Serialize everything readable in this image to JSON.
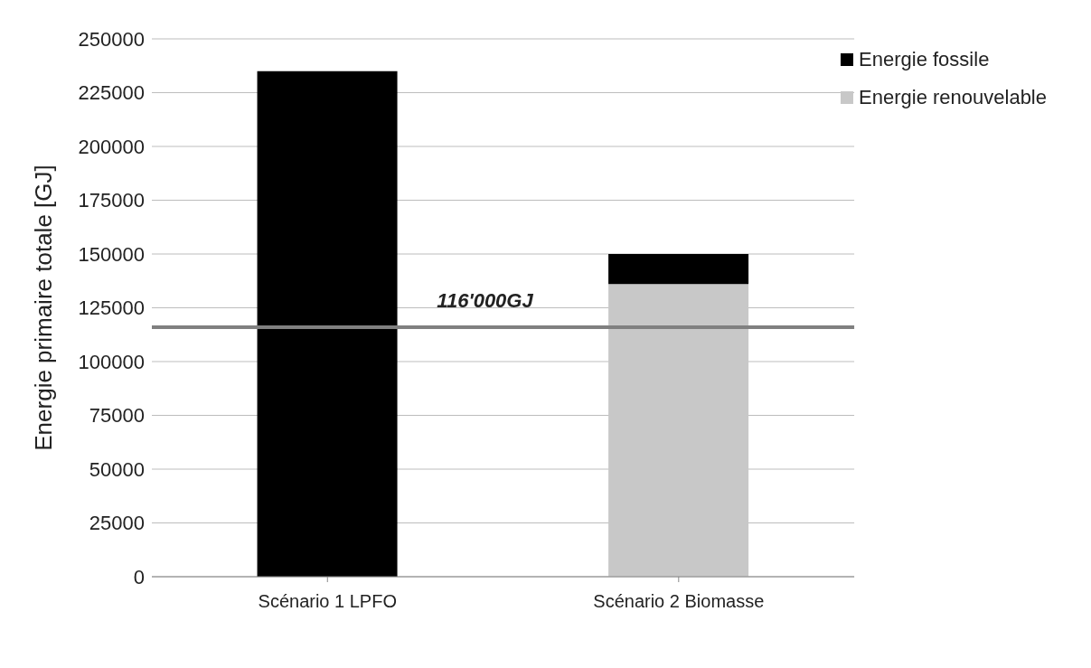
{
  "chart_data": {
    "type": "bar",
    "stacked": true,
    "ylabel": "Energie primaire totale [GJ]",
    "categories": [
      "Scénario 1 LPFO",
      "Scénario 2 Biomasse"
    ],
    "series": [
      {
        "name": "Energie renouvelable",
        "color": "#c8c8c8",
        "values": [
          null,
          136000
        ]
      },
      {
        "name": "Energie fossile",
        "color": "#000000",
        "values": [
          235000,
          14000
        ]
      }
    ],
    "ylim": [
      0,
      250000
    ],
    "yticks": [
      0,
      25000,
      50000,
      75000,
      100000,
      125000,
      150000,
      175000,
      200000,
      225000,
      250000
    ],
    "grid": "y",
    "legend": "top right",
    "ref_lines": [
      {
        "axis": "y",
        "value": 116000,
        "label": "116'000GJ",
        "color": "#808080"
      }
    ]
  }
}
